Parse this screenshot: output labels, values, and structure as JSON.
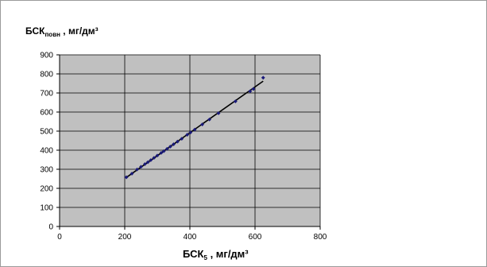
{
  "chart_data": {
    "type": "scatter",
    "ylabel_main": "БСК",
    "ylabel_sub": "повн",
    "ylabel_units": " , мг/дм³",
    "xlabel_main": "БСК",
    "xlabel_sub": "5",
    "xlabel_units": " , мг/дм³",
    "xlim": [
      0,
      800
    ],
    "ylim": [
      0,
      900
    ],
    "x_ticks": [
      0,
      200,
      400,
      600,
      800
    ],
    "y_ticks": [
      0,
      100,
      200,
      300,
      400,
      500,
      600,
      700,
      800,
      900
    ],
    "grid": true,
    "legend": "none",
    "colors": {
      "plot_bg": "#c0c0c0",
      "marker": "#1a1a7a",
      "line": "#000000"
    },
    "series": [
      {
        "marker": "diamond",
        "trendline": "linear",
        "x": [
          205,
          222,
          238,
          250,
          262,
          271,
          280,
          290,
          300,
          312,
          320,
          330,
          340,
          350,
          362,
          375,
          392,
          402,
          415,
          438,
          460,
          488,
          540,
          585,
          595,
          625
        ],
        "y": [
          258,
          277,
          299,
          313,
          327,
          337,
          348,
          360,
          372,
          386,
          395,
          407,
          419,
          431,
          445,
          460,
          481,
          493,
          508,
          535,
          561,
          594,
          656,
          709,
          721,
          780
        ]
      }
    ]
  }
}
